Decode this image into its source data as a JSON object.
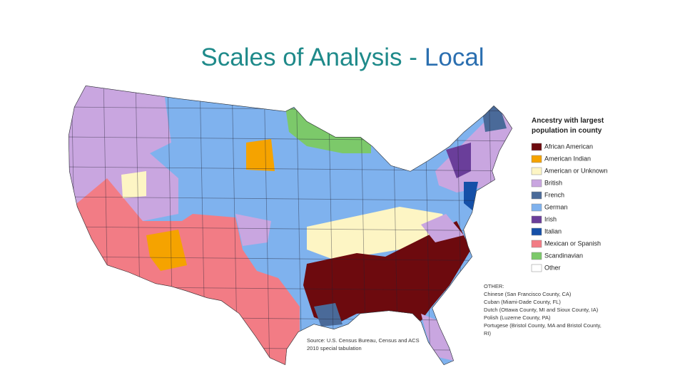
{
  "title": {
    "main": "Scales of Analysis -",
    "highlight": "Local"
  },
  "legend": {
    "title_lines": [
      "Ancestry with largest",
      "population in county"
    ],
    "items": [
      {
        "label": "African American",
        "color": "#6d0a0e"
      },
      {
        "label": "American Indian",
        "color": "#f5a300"
      },
      {
        "label": "American or Unknown",
        "color": "#fdf5c4"
      },
      {
        "label": "British",
        "color": "#c9a6e0"
      },
      {
        "label": "French",
        "color": "#4a6a99"
      },
      {
        "label": "German",
        "color": "#7fb2ee"
      },
      {
        "label": "Irish",
        "color": "#6a3e9a"
      },
      {
        "label": "Italian",
        "color": "#1550a8"
      },
      {
        "label": "Mexican or Spanish",
        "color": "#f27c85"
      },
      {
        "label": "Scandinavian",
        "color": "#7cc96a"
      },
      {
        "label": "Other",
        "color": "#ffffff"
      }
    ]
  },
  "other": {
    "heading": "OTHER:",
    "lines": [
      "Chinese (San Francisco County, CA)",
      "Cuban (Miami-Dade County, FL)",
      "Dutch (Ottawa County, MI and Sioux County, IA)",
      "Polish (Luzerne County, PA)",
      "Portugese (Bristol County, MA and Bristol County,",
      "RI)"
    ]
  },
  "source": [
    "Source: U.S. Census Bureau, Census and ACS",
    "2010 special tabulation"
  ]
}
